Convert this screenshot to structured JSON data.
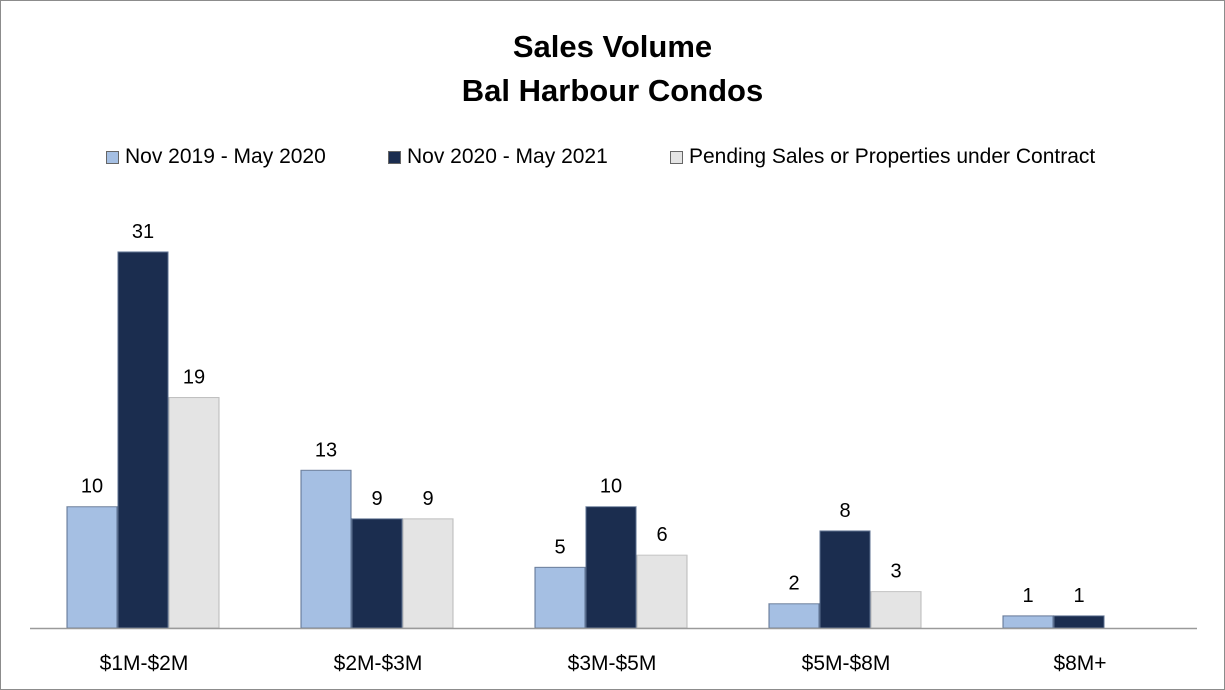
{
  "chart_data": {
    "type": "bar",
    "title": "Sales Volume",
    "subtitle": "Bal Harbour Condos",
    "categories": [
      "$1M-$2M",
      "$2M-$3M",
      "$3M-$5M",
      "$5M-$8M",
      "$8M+"
    ],
    "series": [
      {
        "name": "Nov 2019 - May 2020",
        "values": [
          10,
          13,
          5,
          2,
          1
        ],
        "color": "#a5bfe3"
      },
      {
        "name": "Nov 2020 - May 2021",
        "values": [
          31,
          9,
          10,
          8,
          1
        ],
        "color": "#1b2d4f"
      },
      {
        "name": "Pending Sales or Properties under Contract",
        "values": [
          19,
          9,
          6,
          3,
          null
        ],
        "color": "#e4e4e4"
      }
    ],
    "ylim": [
      0,
      35
    ],
    "grid": false,
    "legend_position": "top"
  }
}
